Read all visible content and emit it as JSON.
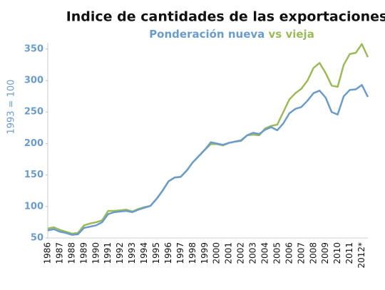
{
  "chart_data": {
    "type": "line",
    "title": "Indice de cantidades de las exportaciones",
    "legend_separator": "vs",
    "y_label": "1993 = 100",
    "categories": [
      "1986",
      null,
      "1987",
      null,
      "1988",
      null,
      "1989",
      null,
      "1990",
      null,
      "1991",
      null,
      "1992",
      null,
      "1993",
      null,
      "1994",
      null,
      "1995",
      null,
      "1996",
      null,
      "1997",
      null,
      "1998",
      null,
      "1999",
      null,
      "2000",
      null,
      "2001",
      null,
      "2002",
      null,
      "2003",
      null,
      "2004",
      null,
      "2005",
      null,
      "2006",
      null,
      "2007",
      null,
      "2008",
      null,
      "2009",
      null,
      "2010",
      null,
      "2011",
      null,
      "2012*",
      null
    ],
    "series": [
      {
        "name": "Ponderación nueva",
        "color": "#6a9ccb",
        "values": [
          62,
          64,
          60,
          58,
          55,
          56,
          66,
          68,
          70,
          75,
          88,
          91,
          92,
          93,
          91,
          95,
          98,
          101,
          112,
          125,
          140,
          146,
          147,
          157,
          170,
          180,
          190,
          202,
          200,
          198,
          201,
          203,
          205,
          213,
          217,
          215,
          222,
          226,
          221,
          232,
          248,
          255,
          258,
          268,
          280,
          284,
          273,
          250,
          246,
          275,
          285,
          286,
          293,
          274
        ]
      },
      {
        "name": "vieja",
        "color": "#9bbb59",
        "values": [
          65,
          67,
          63,
          60,
          57,
          58,
          70,
          73,
          75,
          78,
          93,
          93,
          94,
          95,
          92,
          96,
          99,
          101,
          112,
          125,
          140,
          146,
          147,
          157,
          170,
          180,
          190,
          199,
          199,
          197,
          201,
          203,
          204,
          213,
          214,
          213,
          224,
          228,
          230,
          250,
          270,
          280,
          287,
          300,
          320,
          328,
          312,
          292,
          290,
          325,
          342,
          344,
          358,
          337
        ]
      }
    ],
    "ylim": [
      50,
      360
    ],
    "yticks": [
      50,
      100,
      150,
      200,
      250,
      300,
      350
    ]
  }
}
